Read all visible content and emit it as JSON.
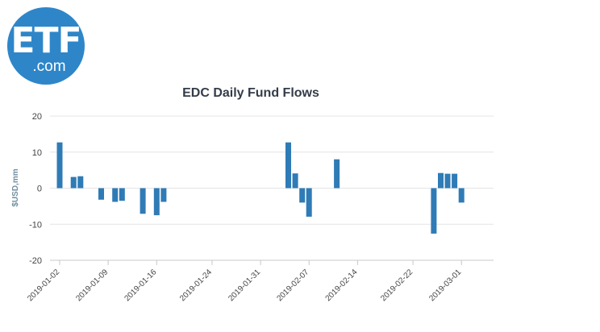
{
  "logo": {
    "main": "ETF",
    "sub": ".com"
  },
  "chart_data": {
    "type": "bar",
    "title": "EDC Daily Fund Flows",
    "xlabel": "",
    "ylabel": "$USD,mm",
    "ylim": [
      -20,
      20
    ],
    "yticks": [
      20,
      10,
      0,
      -10,
      -20
    ],
    "grid": true,
    "color": "#2f7bb6",
    "x_start": "2019-01-02",
    "x_end": "2019-03-04",
    "xtick_labels": [
      "2019-01-02",
      "2019-01-09",
      "2019-01-16",
      "2019-01-24",
      "2019-01-31",
      "2019-02-07",
      "2019-02-14",
      "2019-02-22",
      "2019-03-01"
    ],
    "dates": [
      "2019-01-02",
      "2019-01-04",
      "2019-01-05",
      "2019-01-08",
      "2019-01-10",
      "2019-01-11",
      "2019-01-14",
      "2019-01-16",
      "2019-01-17",
      "2019-02-04",
      "2019-02-05",
      "2019-02-06",
      "2019-02-07",
      "2019-02-11",
      "2019-02-25",
      "2019-02-26",
      "2019-02-27",
      "2019-02-28",
      "2019-03-01"
    ],
    "values": [
      12.7,
      3.1,
      3.3,
      -3.2,
      -3.8,
      -3.5,
      -7.1,
      -7.5,
      -3.8,
      12.7,
      4.1,
      -4.0,
      -7.9,
      8.0,
      -12.6,
      4.2,
      4.0,
      4.0,
      -4.0
    ]
  }
}
